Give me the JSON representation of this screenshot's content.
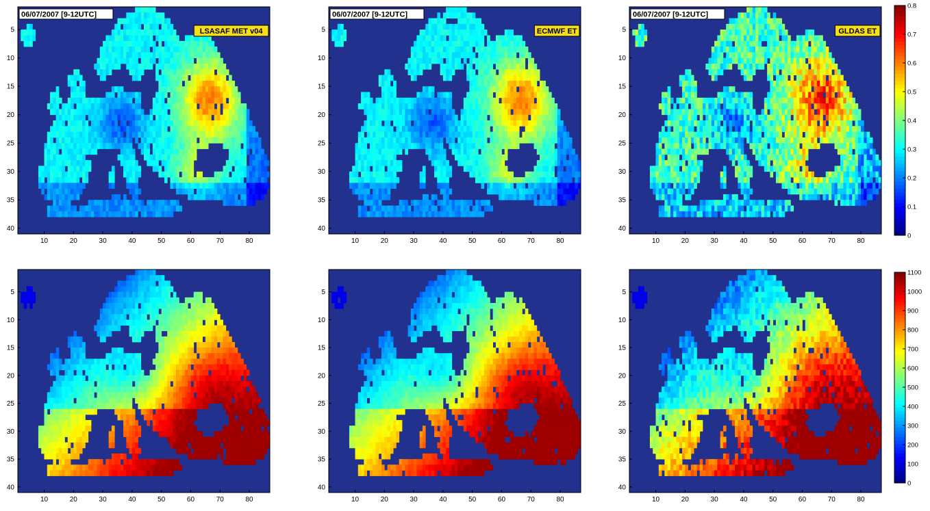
{
  "figure": {
    "panels": [
      {
        "id": "et_lsasaf",
        "date_label": "06/07/2007 [9-12UTC]",
        "product_label": "LSASAF MET v04",
        "row": "top",
        "style": "A"
      },
      {
        "id": "et_ecmwf",
        "date_label": "06/07/2007 [9-12UTC]",
        "product_label": "ECMWF ET",
        "row": "top",
        "style": "B"
      },
      {
        "id": "et_gldas",
        "date_label": "06/07/2007 [9-12UTC]",
        "product_label": "GLDAS ET",
        "row": "top",
        "style": "C"
      },
      {
        "id": "rad_lsasaf",
        "date_label": "",
        "product_label": "",
        "row": "bottom",
        "style": "A"
      },
      {
        "id": "rad_ecmwf",
        "date_label": "",
        "product_label": "",
        "row": "bottom",
        "style": "B"
      },
      {
        "id": "rad_gldas",
        "date_label": "",
        "product_label": "",
        "row": "bottom",
        "style": "C"
      }
    ],
    "colorbars": [
      {
        "row": "top",
        "ticks": [
          "0",
          "0.1",
          "0.2",
          "0.3",
          "0.4",
          "0.5",
          "0.6",
          "0.7",
          "0.8"
        ]
      },
      {
        "row": "bottom",
        "ticks": [
          "0",
          "100",
          "200",
          "300",
          "400",
          "500",
          "600",
          "700",
          "800",
          "900",
          "1000",
          "1100"
        ]
      }
    ]
  },
  "chart_data": [
    {
      "type": "heatmap",
      "title": "",
      "x_ticks": [
        "10",
        "20",
        "30",
        "40",
        "50",
        "60",
        "70",
        "80"
      ],
      "y_ticks": [
        "5",
        "10",
        "15",
        "20",
        "25",
        "30",
        "35",
        "40"
      ],
      "xlim": [
        1,
        87
      ],
      "ylim": [
        41,
        1
      ],
      "value_range": [
        0,
        0.8
      ],
      "annotations": [
        "06/07/2007 [9-12UTC]",
        "LSASAF MET v04"
      ]
    },
    {
      "type": "heatmap",
      "title": "",
      "x_ticks": [
        "10",
        "20",
        "30",
        "40",
        "50",
        "60",
        "70",
        "80"
      ],
      "y_ticks": [
        "5",
        "10",
        "15",
        "20",
        "25",
        "30",
        "35",
        "40"
      ],
      "xlim": [
        1,
        87
      ],
      "ylim": [
        41,
        1
      ],
      "value_range": [
        0,
        0.8
      ],
      "annotations": [
        "06/07/2007 [9-12UTC]",
        "ECMWF ET"
      ]
    },
    {
      "type": "heatmap",
      "title": "",
      "x_ticks": [
        "10",
        "20",
        "30",
        "40",
        "50",
        "60",
        "70",
        "80"
      ],
      "y_ticks": [
        "5",
        "10",
        "15",
        "20",
        "25",
        "30",
        "35",
        "40"
      ],
      "xlim": [
        1,
        87
      ],
      "ylim": [
        41,
        1
      ],
      "value_range": [
        0,
        0.8
      ],
      "annotations": [
        "06/07/2007 [9-12UTC]",
        "GLDAS ET"
      ]
    },
    {
      "type": "heatmap",
      "title": "",
      "x_ticks": [
        "10",
        "20",
        "30",
        "40",
        "50",
        "60",
        "70",
        "80"
      ],
      "y_ticks": [
        "5",
        "10",
        "15",
        "20",
        "25",
        "30",
        "35",
        "40"
      ],
      "xlim": [
        1,
        87
      ],
      "ylim": [
        41,
        1
      ],
      "value_range": [
        0,
        1100
      ]
    },
    {
      "type": "heatmap",
      "title": "",
      "x_ticks": [
        "10",
        "20",
        "30",
        "40",
        "50",
        "60",
        "70",
        "80"
      ],
      "y_ticks": [
        "5",
        "10",
        "15",
        "20",
        "25",
        "30",
        "35",
        "40"
      ],
      "xlim": [
        1,
        87
      ],
      "ylim": [
        41,
        1
      ],
      "value_range": [
        0,
        1100
      ]
    },
    {
      "type": "heatmap",
      "title": "",
      "x_ticks": [
        "10",
        "20",
        "30",
        "40",
        "50",
        "60",
        "70",
        "80"
      ],
      "y_ticks": [
        "5",
        "10",
        "15",
        "20",
        "25",
        "30",
        "35",
        "40"
      ],
      "xlim": [
        1,
        87
      ],
      "ylim": [
        41,
        1
      ],
      "value_range": [
        0,
        1100
      ]
    }
  ],
  "colors": {
    "ocean": "#22308e",
    "axis": "#000000",
    "label_box_fill": "#ffffff",
    "product_box_fill": "#f6df1a",
    "colormap": "jet"
  }
}
